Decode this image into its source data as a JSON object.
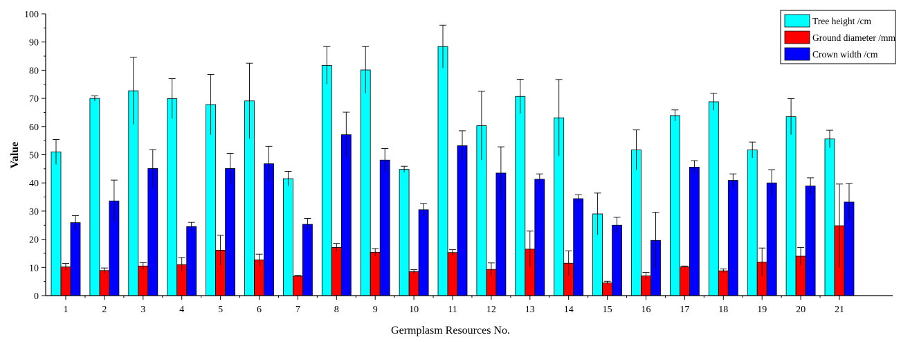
{
  "chart_data": {
    "type": "bar",
    "title": "",
    "xlabel": "Germplasm Resources No.",
    "ylabel": "Value",
    "ylim": [
      0,
      100
    ],
    "yticks": [
      0,
      10,
      20,
      30,
      40,
      50,
      60,
      70,
      80,
      90,
      100
    ],
    "grid": false,
    "legend_position": "top-right",
    "categories": [
      "1",
      "2",
      "3",
      "4",
      "5",
      "6",
      "7",
      "8",
      "9",
      "10",
      "11",
      "12",
      "13",
      "14",
      "15",
      "16",
      "17",
      "18",
      "19",
      "20",
      "21"
    ],
    "series": [
      {
        "name": "Tree height /cm",
        "color": "#00ffff",
        "values": [
          51.0,
          70.0,
          72.7,
          69.9,
          67.8,
          69.1,
          41.5,
          81.7,
          80.1,
          44.8,
          88.4,
          60.3,
          70.7,
          63.1,
          29.0,
          51.7,
          63.9,
          68.8,
          51.7,
          63.5,
          55.6
        ],
        "errors": [
          4.4,
          0.9,
          11.9,
          7.1,
          10.7,
          13.4,
          2.6,
          6.7,
          8.3,
          1.1,
          7.6,
          12.2,
          6.1,
          13.6,
          7.4,
          7.1,
          2.0,
          3.0,
          2.8,
          6.4,
          3.1
        ]
      },
      {
        "name": "Ground diameter /mm",
        "color": "#ff0000",
        "values": [
          10.2,
          8.9,
          10.5,
          11.0,
          16.1,
          12.7,
          6.9,
          17.1,
          15.4,
          8.5,
          15.3,
          9.3,
          16.5,
          11.5,
          4.5,
          7.0,
          10.2,
          8.8,
          11.9,
          14.0,
          24.8
        ],
        "errors": [
          1.2,
          0.9,
          1.2,
          2.5,
          5.3,
          2.0,
          0.3,
          1.4,
          1.3,
          0.7,
          1.0,
          2.3,
          6.4,
          4.4,
          0.6,
          1.2,
          0.3,
          0.7,
          5.0,
          3.1,
          14.8
        ]
      },
      {
        "name": "Crown width /cm",
        "color": "#0000ff",
        "values": [
          25.9,
          33.6,
          45.1,
          24.5,
          45.1,
          46.8,
          25.3,
          57.1,
          48.1,
          30.5,
          53.2,
          43.5,
          41.3,
          34.4,
          25.0,
          19.6,
          45.6,
          40.9,
          40.0,
          38.9,
          33.2
        ],
        "errors": [
          2.5,
          7.4,
          6.7,
          1.5,
          5.4,
          6.2,
          2.1,
          8.0,
          4.1,
          2.2,
          5.3,
          9.3,
          1.9,
          1.4,
          2.8,
          10.0,
          2.3,
          2.3,
          4.7,
          2.9,
          6.6
        ]
      }
    ]
  }
}
